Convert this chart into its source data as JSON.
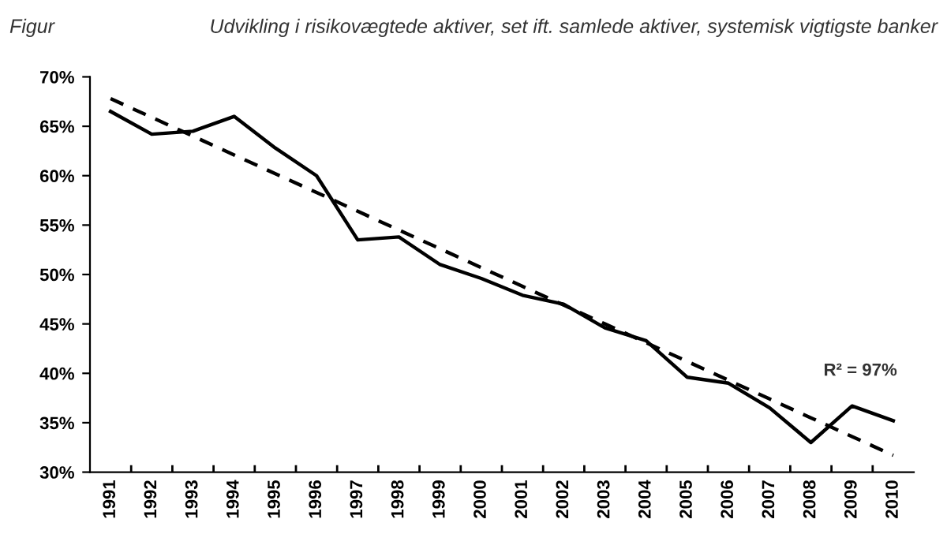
{
  "chart_data": {
    "type": "line",
    "title": "Udvikling i risikovægtede aktiver, set ift. samlede aktiver, systemisk vigtigste banker",
    "subtitle": "Figur",
    "categories": [
      "1991",
      "1992",
      "1993",
      "1994",
      "1995",
      "1996",
      "1997",
      "1998",
      "1999",
      "2000",
      "2001",
      "2002",
      "2003",
      "2004",
      "2005",
      "2006",
      "2007",
      "2008",
      "2009",
      "2010"
    ],
    "series": [
      {
        "color": "#000000",
        "line_style": "solid",
        "values": [
          66.5,
          64.2,
          64.5,
          66,
          62.8,
          60,
          53.5,
          53.8,
          51,
          49.6,
          47.9,
          47,
          44.6,
          43.3,
          39.6,
          39,
          36.5,
          33,
          36.7,
          35.2
        ]
      },
      {
        "color": "#000000",
        "line_style": "dashed",
        "values": [
          67.8,
          65.9,
          64,
          62.1,
          60.2,
          58.3,
          56.4,
          54.5,
          52.6,
          50.7,
          48.8,
          46.9,
          45,
          43.1,
          41.2,
          39.3,
          37.4,
          35.5,
          33.6,
          31.7
        ]
      }
    ],
    "ylim": [
      30,
      70
    ],
    "yticks": [
      {
        "value": 30,
        "label": "30%"
      },
      {
        "value": 35,
        "label": "35%"
      },
      {
        "value": 40,
        "label": "40%"
      },
      {
        "value": 45,
        "label": "45%"
      },
      {
        "value": 50,
        "label": "50%"
      },
      {
        "value": 55,
        "label": "55%"
      },
      {
        "value": 60,
        "label": "60%"
      },
      {
        "value": 65,
        "label": "65%"
      },
      {
        "value": 70,
        "label": "70%"
      }
    ],
    "annotations": [
      "R² = 97%"
    ],
    "grid": false,
    "legend": false,
    "marker": "none"
  }
}
